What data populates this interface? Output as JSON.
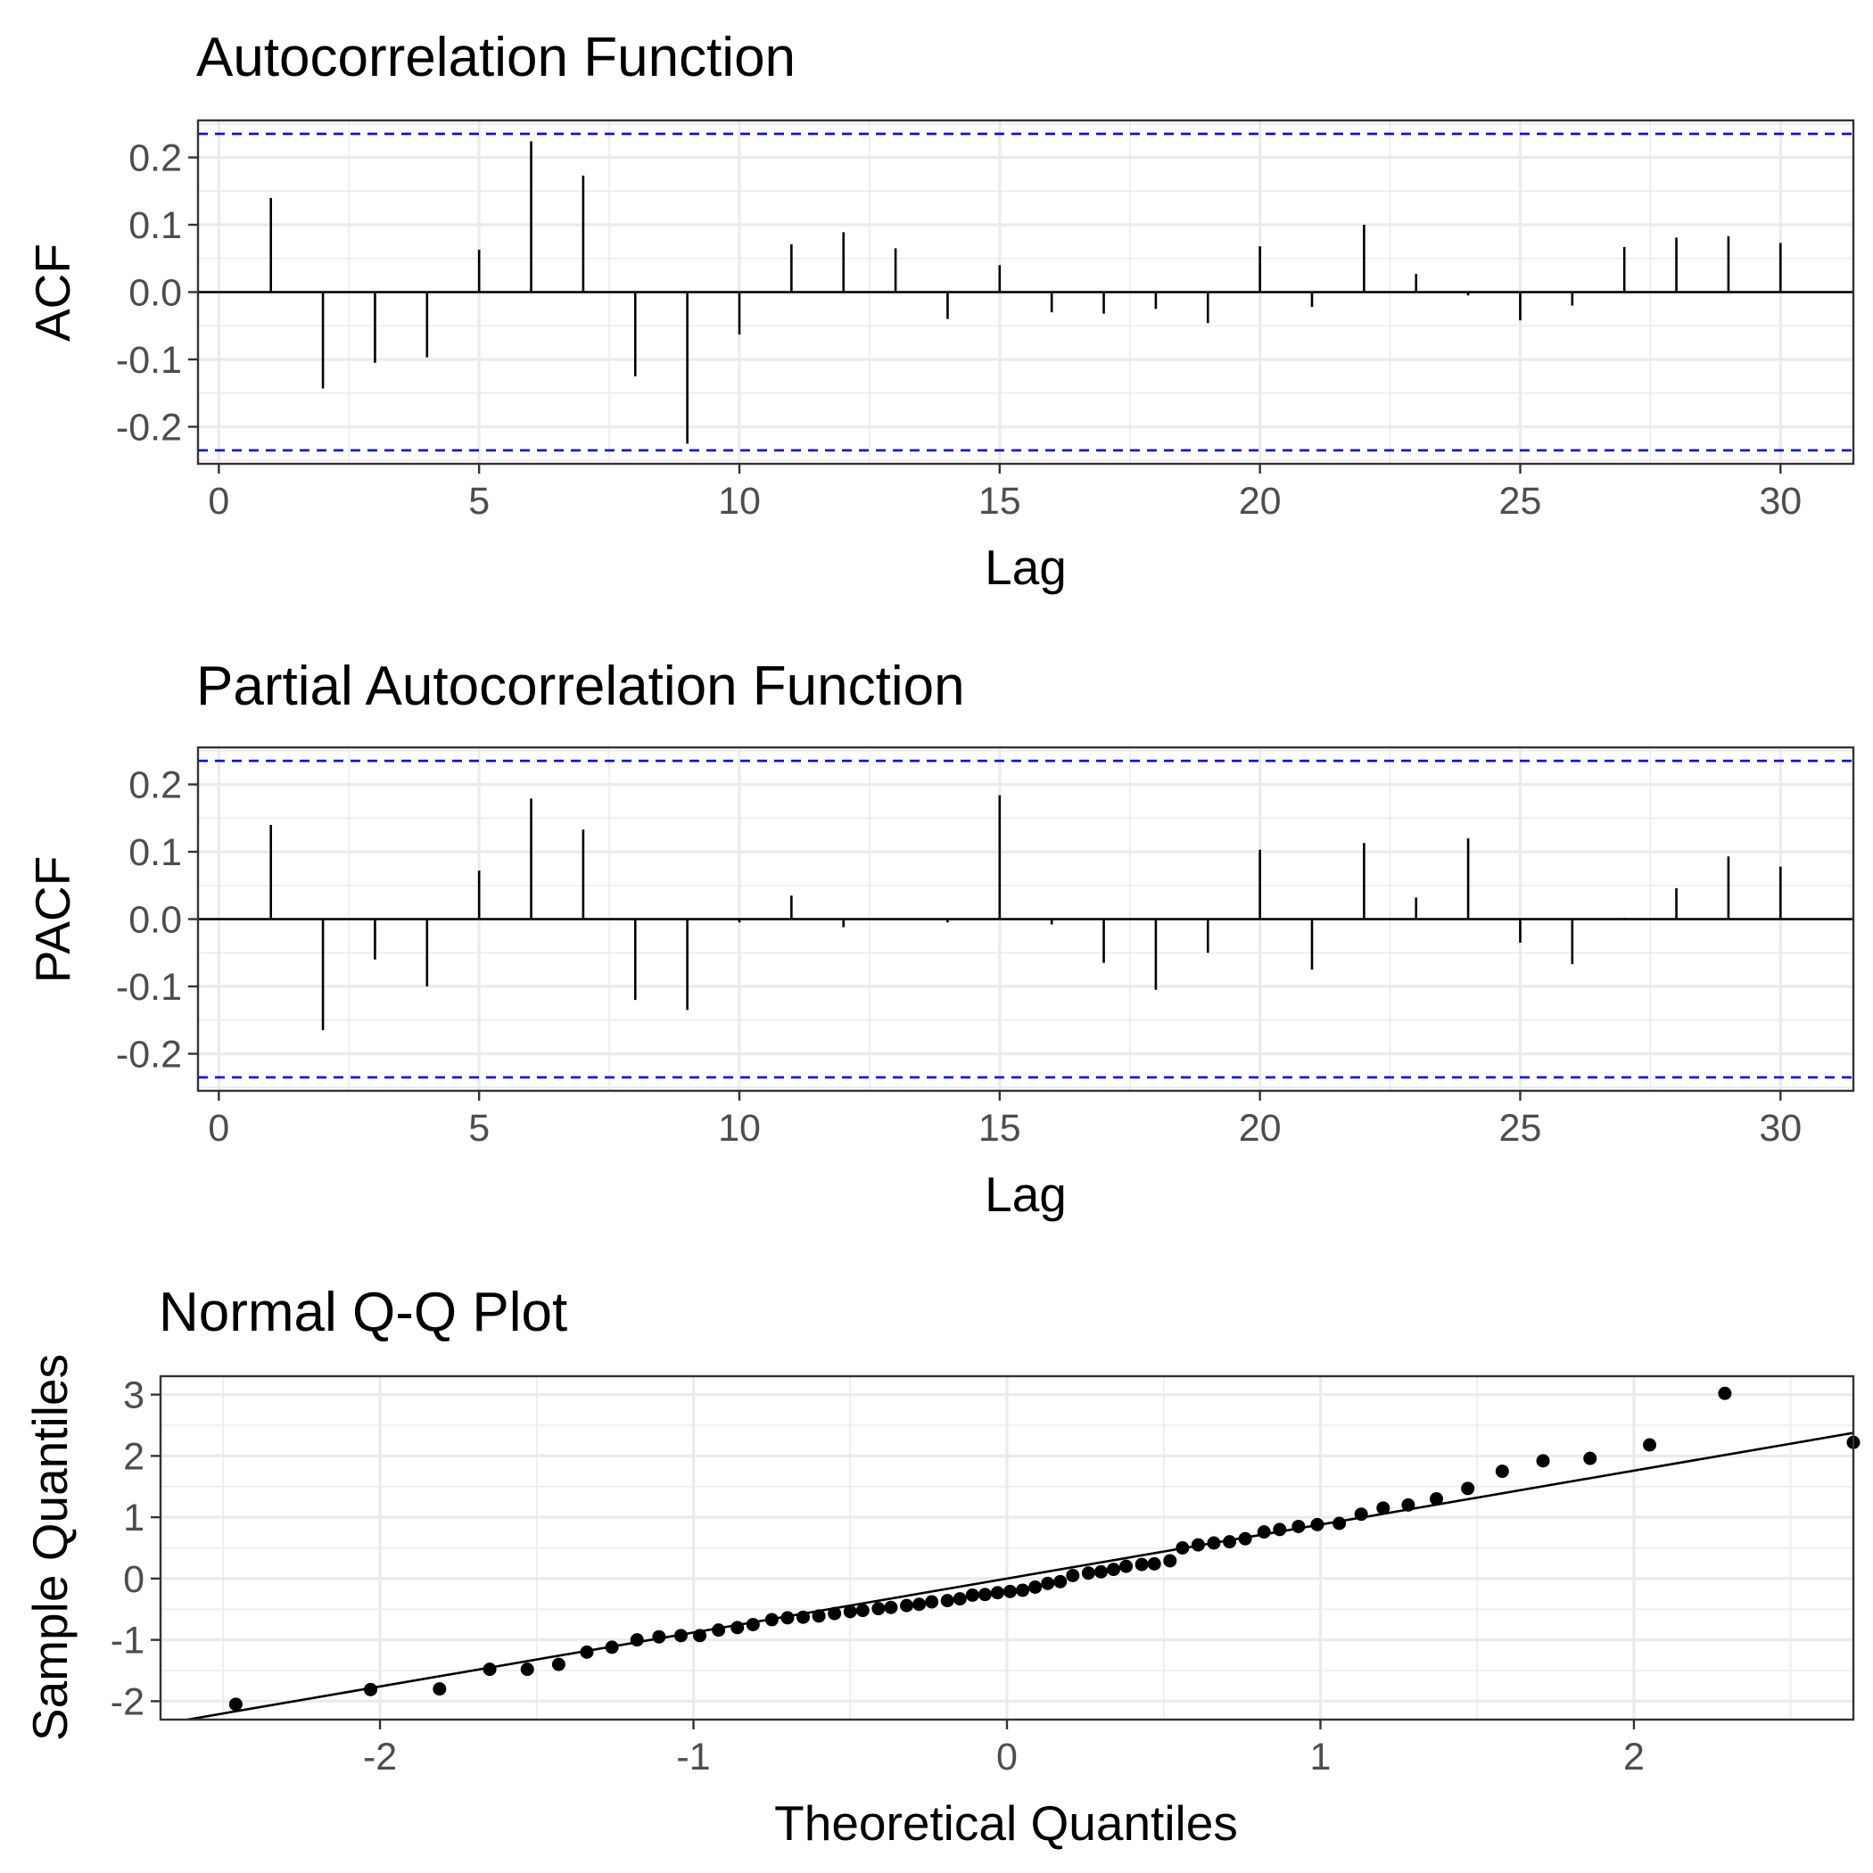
{
  "chart_data": [
    {
      "type": "bar",
      "title": "Autocorrelation Function",
      "xlabel": "Lag",
      "ylabel": "ACF",
      "xlim": [
        -0.4,
        31.4
      ],
      "ylim": [
        -0.255,
        0.255
      ],
      "x_ticks": [
        0,
        5,
        10,
        15,
        20,
        25,
        30
      ],
      "y_ticks": [
        -0.2,
        -0.1,
        0.0,
        0.1,
        0.2
      ],
      "y_tick_labels": [
        "-0.2",
        "-0.1",
        "0.0",
        "0.1",
        "0.2"
      ],
      "confidence_bounds": [
        0.235,
        -0.235
      ],
      "confidence_color": "#0000ff",
      "lags": [
        1,
        2,
        3,
        4,
        5,
        6,
        7,
        8,
        9,
        10,
        11,
        12,
        13,
        14,
        15,
        16,
        17,
        18,
        19,
        20,
        21,
        22,
        23,
        24,
        25,
        26,
        27,
        28,
        29,
        30
      ],
      "values": [
        0.14,
        -0.143,
        -0.105,
        -0.097,
        0.063,
        0.224,
        0.173,
        -0.125,
        -0.225,
        -0.063,
        0.071,
        0.089,
        0.065,
        -0.04,
        0.04,
        -0.03,
        -0.032,
        -0.025,
        -0.046,
        0.068,
        -0.022,
        0.1,
        0.027,
        -0.005,
        -0.042,
        -0.02,
        0.067,
        0.081,
        0.083,
        0.073
      ],
      "grid": true
    },
    {
      "type": "bar",
      "title": "Partial Autocorrelation Function",
      "xlabel": "Lag",
      "ylabel": "PACF",
      "xlim": [
        -0.4,
        31.4
      ],
      "ylim": [
        -0.255,
        0.255
      ],
      "x_ticks": [
        0,
        5,
        10,
        15,
        20,
        25,
        30
      ],
      "y_ticks": [
        -0.2,
        -0.1,
        0.0,
        0.1,
        0.2
      ],
      "y_tick_labels": [
        "-0.2",
        "-0.1",
        "0.0",
        "0.1",
        "0.2"
      ],
      "confidence_bounds": [
        0.235,
        -0.235
      ],
      "confidence_color": "#0000ff",
      "lags": [
        1,
        2,
        3,
        4,
        5,
        6,
        7,
        8,
        9,
        10,
        11,
        12,
        13,
        14,
        15,
        16,
        17,
        18,
        19,
        20,
        21,
        22,
        23,
        24,
        25,
        26,
        27,
        28,
        29,
        30
      ],
      "values": [
        0.14,
        -0.165,
        -0.06,
        -0.1,
        0.072,
        0.179,
        0.133,
        -0.12,
        -0.135,
        -0.005,
        0.035,
        -0.012,
        0.0,
        -0.005,
        0.184,
        -0.008,
        -0.065,
        -0.105,
        -0.05,
        0.103,
        -0.075,
        0.113,
        0.032,
        0.12,
        -0.035,
        -0.067,
        0.002,
        0.046,
        0.093,
        0.078
      ],
      "grid": true
    },
    {
      "type": "scatter",
      "title": "Normal Q-Q Plot",
      "xlabel": "Theoretical Quantiles",
      "ylabel": "Sample Quantiles",
      "xlim": [
        -2.7,
        2.7
      ],
      "ylim": [
        -2.3,
        3.3
      ],
      "x_ticks": [
        -2,
        -1,
        0,
        1,
        2
      ],
      "y_ticks": [
        -2,
        -1,
        0,
        1,
        2,
        3
      ],
      "points_x": [
        -2.46,
        -2.03,
        -1.81,
        -1.65,
        -1.53,
        -1.43,
        -1.34,
        -1.26,
        -1.18,
        -1.11,
        -1.04,
        -0.98,
        -0.92,
        -0.86,
        -0.81,
        -0.75,
        -0.7,
        -0.65,
        -0.6,
        -0.55,
        -0.5,
        -0.46,
        -0.41,
        -0.37,
        -0.32,
        -0.28,
        -0.24,
        -0.19,
        -0.15,
        -0.11,
        -0.07,
        -0.03,
        0.01,
        0.05,
        0.09,
        0.13,
        0.17,
        0.21,
        0.26,
        0.3,
        0.34,
        0.38,
        0.43,
        0.47,
        0.52,
        0.56,
        0.61,
        0.66,
        0.71,
        0.76,
        0.82,
        0.87,
        0.93,
        0.99,
        1.06,
        1.13,
        1.2,
        1.28,
        1.37,
        1.47,
        1.58,
        1.71,
        1.86,
        2.05,
        2.29,
        2.7
      ],
      "points_y": [
        -2.05,
        -1.81,
        -1.8,
        -1.48,
        -1.48,
        -1.4,
        -1.2,
        -1.12,
        -1.0,
        -0.95,
        -0.93,
        -0.93,
        -0.84,
        -0.8,
        -0.75,
        -0.67,
        -0.64,
        -0.63,
        -0.61,
        -0.57,
        -0.54,
        -0.52,
        -0.49,
        -0.47,
        -0.44,
        -0.42,
        -0.38,
        -0.36,
        -0.33,
        -0.27,
        -0.26,
        -0.23,
        -0.21,
        -0.19,
        -0.14,
        -0.08,
        -0.05,
        0.05,
        0.09,
        0.11,
        0.15,
        0.2,
        0.23,
        0.24,
        0.29,
        0.5,
        0.55,
        0.58,
        0.6,
        0.65,
        0.76,
        0.8,
        0.85,
        0.88,
        0.9,
        1.05,
        1.15,
        1.2,
        1.3,
        1.47,
        1.75,
        1.92,
        1.96,
        2.18,
        3.02,
        2.22
      ],
      "reference_line": {
        "slope": 0.88,
        "intercept": 0.0
      },
      "grid": true
    }
  ]
}
